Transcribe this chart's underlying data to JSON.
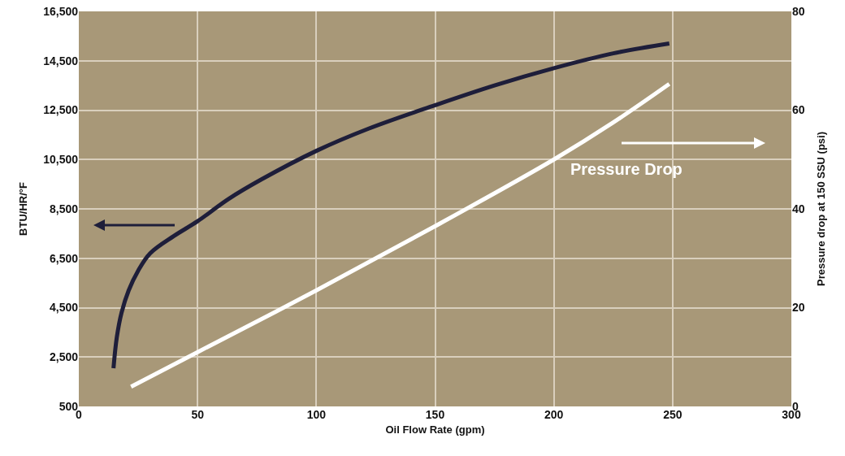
{
  "chart_data": {
    "type": "line",
    "xlabel": "Oil Flow Rate (gpm)",
    "ylabel": "BTU/HR/°F",
    "y2label": "Pressure drop at 150 SSU (psi)",
    "xlim": [
      0,
      300
    ],
    "xticks": [
      0,
      50,
      100,
      150,
      200,
      250,
      300
    ],
    "ylim": [
      500,
      16500
    ],
    "yticks": [
      {
        "value": 500,
        "label": "500"
      },
      {
        "value": 2500,
        "label": "2,500"
      },
      {
        "value": 4500,
        "label": "4,500"
      },
      {
        "value": 6500,
        "label": "6,500"
      },
      {
        "value": 8500,
        "label": "8,500"
      },
      {
        "value": 10500,
        "label": "10,500"
      },
      {
        "value": 12500,
        "label": "12,500"
      },
      {
        "value": 14500,
        "label": "14,500"
      },
      {
        "value": 16500,
        "label": "16,500"
      }
    ],
    "y2lim": [
      0,
      80
    ],
    "y2ticks": [
      0,
      20,
      40,
      60,
      80
    ],
    "grid": true,
    "marker": "none",
    "line_style": "solid",
    "annotations": [
      "Pressure Drop"
    ],
    "series": [
      {
        "color": "#1e1e3a",
        "x": [
          14.6,
          16,
          18,
          21,
          25,
          30,
          40,
          50,
          63,
          77,
          100,
          122,
          150,
          175,
          200,
          225,
          248.6
        ],
        "values": [
          2050,
          3300,
          4300,
          5200,
          6000,
          6700,
          7400,
          8000,
          8900,
          9700,
          10850,
          11750,
          12700,
          13500,
          14200,
          14800,
          15200
        ]
      },
      {
        "color": "#ffffff",
        "axis": "y2",
        "x": [
          22,
          50,
          100,
          150,
          200,
          225,
          248.6
        ],
        "values": [
          4,
          11,
          23.5,
          36.5,
          50,
          57.5,
          65.3
        ]
      }
    ]
  }
}
